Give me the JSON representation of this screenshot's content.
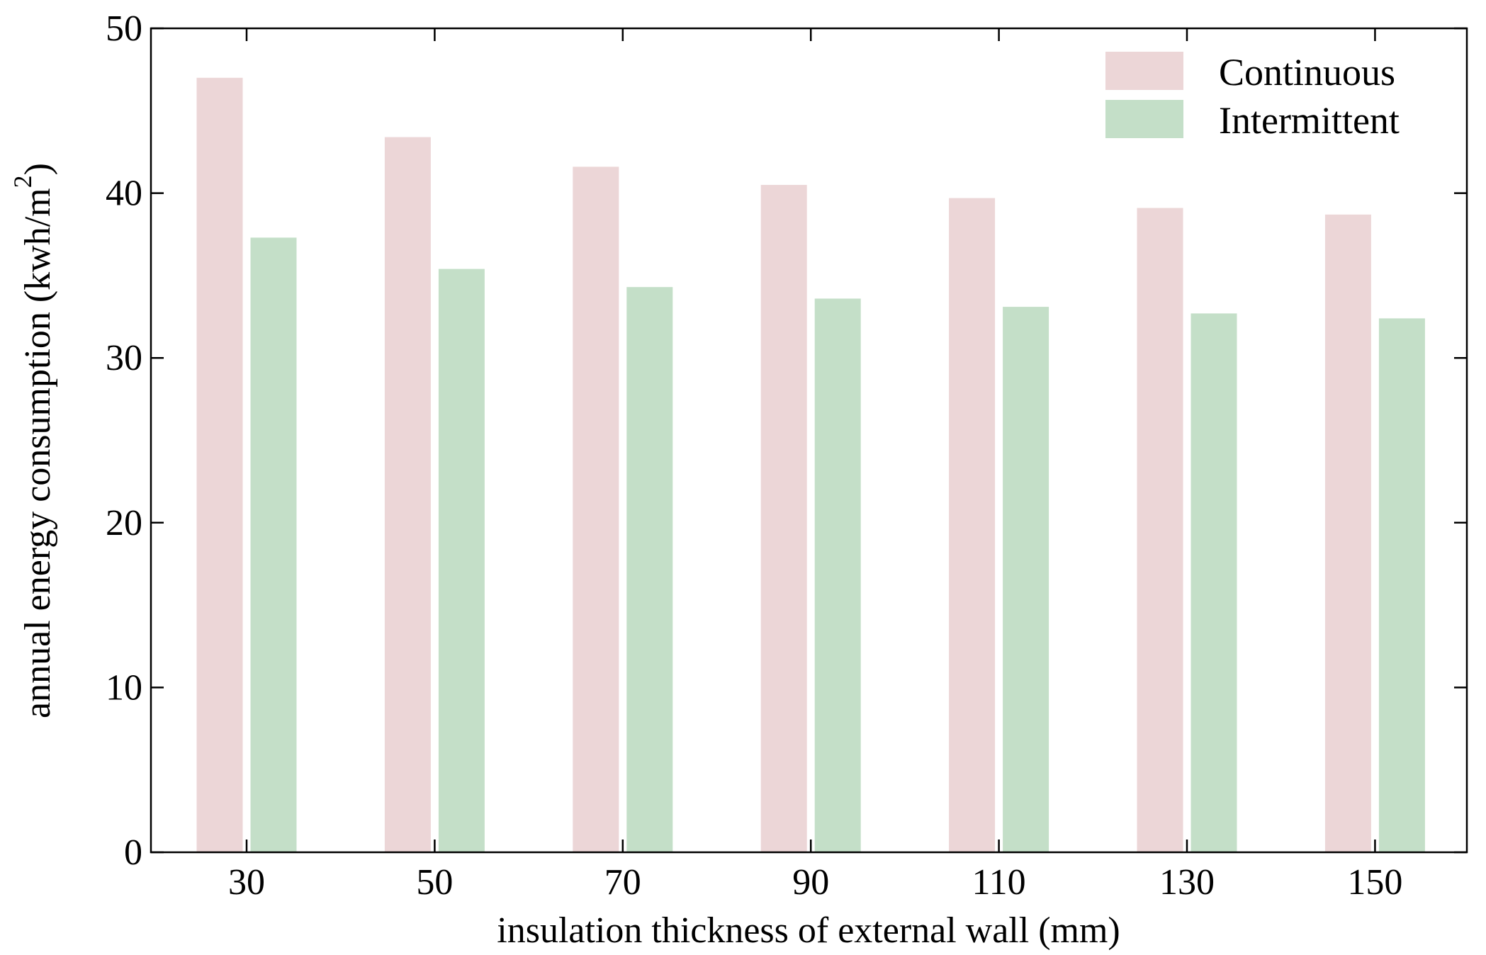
{
  "chart_data": {
    "type": "bar",
    "title": "",
    "xlabel": "insulation thickness of external wall (mm)",
    "ylabel": "annual energy consumption (kwh/m",
    "ylabel_superscript": "2",
    "ylabel_close": ")",
    "categories": [
      "30",
      "50",
      "70",
      "90",
      "110",
      "130",
      "150"
    ],
    "series": [
      {
        "name": "Continuous",
        "color": "#ecd6d7",
        "values": [
          47.0,
          43.4,
          41.6,
          40.5,
          39.7,
          39.1,
          38.7
        ]
      },
      {
        "name": "Intermittent",
        "color": "#c4dfc8",
        "values": [
          37.3,
          35.4,
          34.3,
          33.6,
          33.1,
          32.7,
          32.4
        ]
      }
    ],
    "ylim": [
      0,
      50
    ],
    "yticks": [
      0,
      10,
      20,
      30,
      40,
      50
    ],
    "legend_position": "top-right",
    "grid": false
  }
}
